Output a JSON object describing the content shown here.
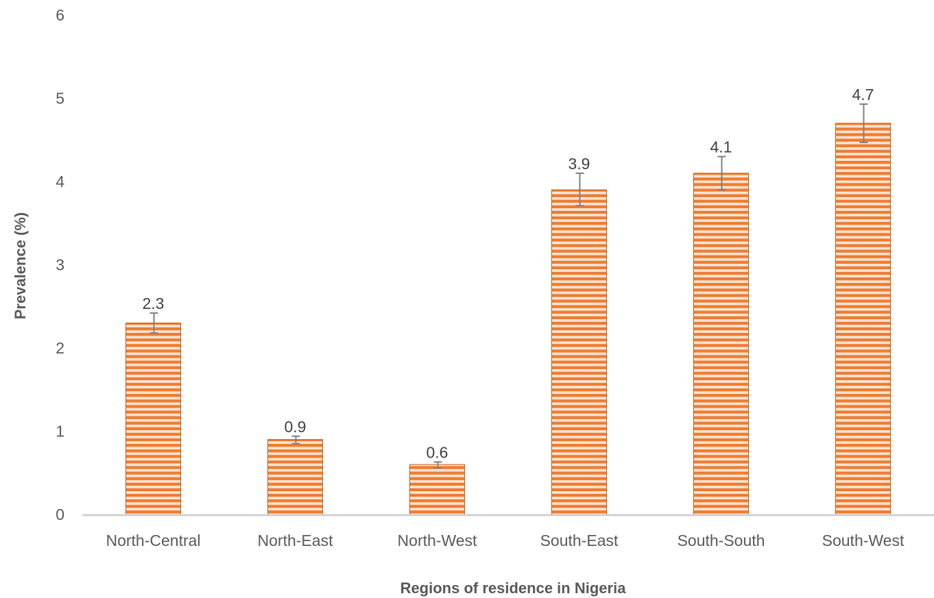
{
  "chart_data": {
    "type": "bar",
    "title": "",
    "xlabel": "Regions of residence in Nigeria",
    "ylabel": "Prevalence (%)",
    "ylim": [
      0,
      6
    ],
    "yticks": [
      0,
      1,
      2,
      3,
      4,
      5,
      6
    ],
    "grid": false,
    "legend": "none",
    "categories": [
      "North-Central",
      "North-East",
      "North-West",
      "South-East",
      "South-South",
      "South-West"
    ],
    "series": [
      {
        "values": [
          2.3,
          0.9,
          0.6,
          3.9,
          4.1,
          4.7
        ],
        "data_labels": [
          "2.3",
          "0.9",
          "0.6",
          "3.9",
          "4.1",
          "4.7"
        ],
        "error_low": [
          2.18,
          0.85,
          0.56,
          3.71,
          3.9,
          4.47
        ],
        "error_high": [
          2.42,
          0.94,
          0.63,
          4.1,
          4.3,
          4.93
        ]
      }
    ],
    "colors": {
      "bar_fill": "#ed7d31",
      "bar_stripe": "#fbe3d2",
      "bar_edge": "#c55a11",
      "error_bar": "#7f7f7f",
      "axis_line": "#d0d0d0"
    }
  }
}
